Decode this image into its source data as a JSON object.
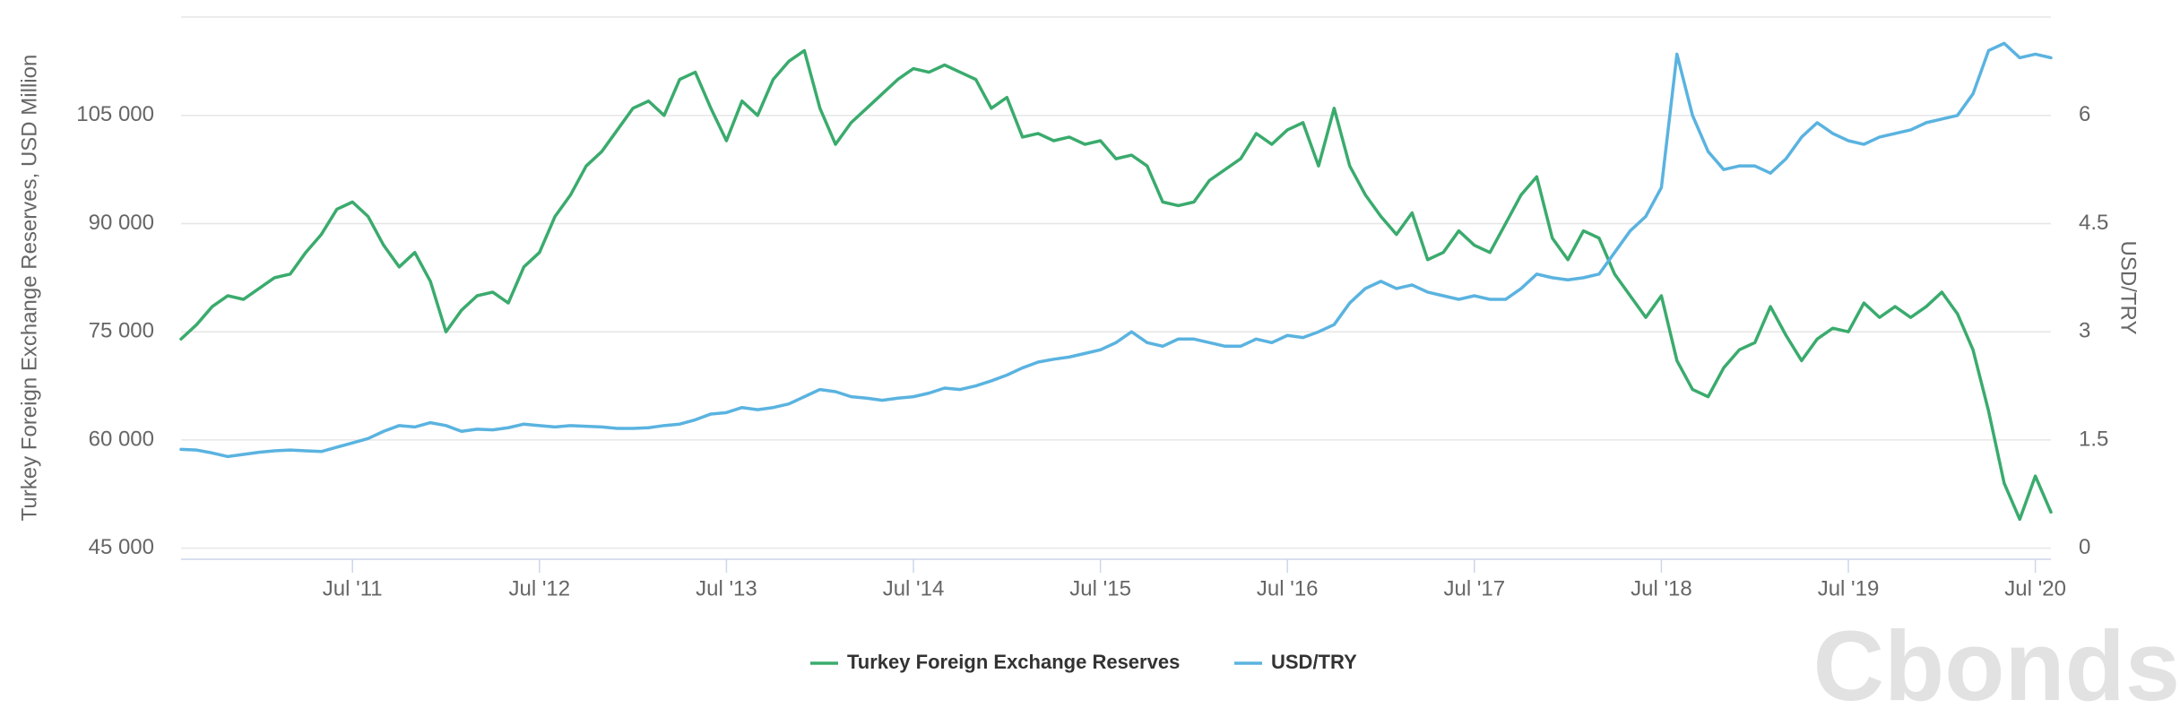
{
  "chart_data": {
    "type": "line",
    "y_label": "Turkey Foreign Exchange Reserves, USD Million",
    "y2_label": "USD/TRY",
    "watermark": "Cbonds",
    "x": [
      "2010-08",
      "2010-09",
      "2010-10",
      "2010-11",
      "2010-12",
      "2011-01",
      "2011-02",
      "2011-03",
      "2011-04",
      "2011-05",
      "2011-06",
      "2011-07",
      "2011-08",
      "2011-09",
      "2011-10",
      "2011-11",
      "2011-12",
      "2012-01",
      "2012-02",
      "2012-03",
      "2012-04",
      "2012-05",
      "2012-06",
      "2012-07",
      "2012-08",
      "2012-09",
      "2012-10",
      "2012-11",
      "2012-12",
      "2013-01",
      "2013-02",
      "2013-03",
      "2013-04",
      "2013-05",
      "2013-06",
      "2013-07",
      "2013-08",
      "2013-09",
      "2013-10",
      "2013-11",
      "2013-12",
      "2014-01",
      "2014-02",
      "2014-03",
      "2014-04",
      "2014-05",
      "2014-06",
      "2014-07",
      "2014-08",
      "2014-09",
      "2014-10",
      "2014-11",
      "2014-12",
      "2015-01",
      "2015-02",
      "2015-03",
      "2015-04",
      "2015-05",
      "2015-06",
      "2015-07",
      "2015-08",
      "2015-09",
      "2015-10",
      "2015-11",
      "2015-12",
      "2016-01",
      "2016-02",
      "2016-03",
      "2016-04",
      "2016-05",
      "2016-06",
      "2016-07",
      "2016-08",
      "2016-09",
      "2016-10",
      "2016-11",
      "2016-12",
      "2017-01",
      "2017-02",
      "2017-03",
      "2017-04",
      "2017-05",
      "2017-06",
      "2017-07",
      "2017-08",
      "2017-09",
      "2017-10",
      "2017-11",
      "2017-12",
      "2018-01",
      "2018-02",
      "2018-03",
      "2018-04",
      "2018-05",
      "2018-06",
      "2018-07",
      "2018-08",
      "2018-09",
      "2018-10",
      "2018-11",
      "2018-12",
      "2019-01",
      "2019-02",
      "2019-03",
      "2019-04",
      "2019-05",
      "2019-06",
      "2019-07",
      "2019-08",
      "2019-09",
      "2019-10",
      "2019-11",
      "2019-12",
      "2020-01",
      "2020-02",
      "2020-03",
      "2020-04",
      "2020-05",
      "2020-06",
      "2020-07",
      "2020-08"
    ],
    "series": [
      {
        "name": "Turkey Foreign Exchange Reserves",
        "color": "#3aab6d",
        "values": [
          74000,
          76000,
          78500,
          80000,
          79500,
          81000,
          82500,
          83000,
          86000,
          88500,
          92000,
          93000,
          91000,
          87000,
          84000,
          86000,
          82000,
          75000,
          78000,
          80000,
          80500,
          79000,
          84000,
          86000,
          91000,
          94000,
          98000,
          100000,
          103000,
          106000,
          107000,
          105000,
          110000,
          111000,
          106000,
          101500,
          107000,
          105000,
          110000,
          112500,
          114000,
          106000,
          101000,
          104000,
          106000,
          108000,
          110000,
          111500,
          111000,
          112000,
          111000,
          110000,
          106000,
          107500,
          102000,
          102500,
          101500,
          102000,
          101000,
          101500,
          99000,
          99500,
          98000,
          93000,
          92500,
          93000,
          96000,
          97500,
          99000,
          102500,
          101000,
          103000,
          104000,
          98000,
          106000,
          98000,
          94000,
          91000,
          88500,
          91500,
          85000,
          86000,
          89000,
          87000,
          86000,
          90000,
          94000,
          96500,
          88000,
          85000,
          89000,
          88000,
          83000,
          80000,
          77000,
          80000,
          71000,
          67000,
          66000,
          70000,
          72500,
          73500,
          78500,
          74500,
          71000,
          74000,
          75500,
          75000,
          79000,
          77000,
          78500,
          77000,
          78500,
          80500,
          77500,
          72500,
          64000,
          54000,
          49000,
          55000,
          50000
        ]
      },
      {
        "name": "USD/TRY",
        "color": "#5ab3e0",
        "axis": "y2",
        "values": [
          1.37,
          1.36,
          1.32,
          1.27,
          1.3,
          1.33,
          1.35,
          1.36,
          1.35,
          1.34,
          1.4,
          1.46,
          1.52,
          1.62,
          1.7,
          1.68,
          1.74,
          1.7,
          1.62,
          1.65,
          1.64,
          1.67,
          1.72,
          1.7,
          1.68,
          1.7,
          1.69,
          1.68,
          1.66,
          1.66,
          1.67,
          1.7,
          1.72,
          1.78,
          1.86,
          1.88,
          1.95,
          1.92,
          1.95,
          2.0,
          2.1,
          2.2,
          2.17,
          2.1,
          2.08,
          2.05,
          2.08,
          2.1,
          2.15,
          2.22,
          2.2,
          2.25,
          2.32,
          2.4,
          2.5,
          2.58,
          2.62,
          2.65,
          2.7,
          2.75,
          2.85,
          3.0,
          2.85,
          2.8,
          2.9,
          2.9,
          2.85,
          2.8,
          2.8,
          2.9,
          2.85,
          2.95,
          2.92,
          3.0,
          3.1,
          3.4,
          3.6,
          3.7,
          3.6,
          3.65,
          3.55,
          3.5,
          3.45,
          3.5,
          3.45,
          3.45,
          3.6,
          3.8,
          3.75,
          3.72,
          3.75,
          3.8,
          4.1,
          4.4,
          4.6,
          5.0,
          6.85,
          6.0,
          5.5,
          5.25,
          5.3,
          5.3,
          5.2,
          5.4,
          5.7,
          5.9,
          5.75,
          5.65,
          5.6,
          5.7,
          5.75,
          5.8,
          5.9,
          5.95,
          6.0,
          6.3,
          6.9,
          7.0,
          6.8,
          6.85,
          6.8
        ]
      }
    ],
    "xlim": [
      "2010-08",
      "2020-08"
    ],
    "xticks": [
      {
        "value": "2011-07",
        "label": "Jul '11"
      },
      {
        "value": "2012-07",
        "label": "Jul '12"
      },
      {
        "value": "2013-07",
        "label": "Jul '13"
      },
      {
        "value": "2014-07",
        "label": "Jul '14"
      },
      {
        "value": "2015-07",
        "label": "Jul '15"
      },
      {
        "value": "2016-07",
        "label": "Jul '16"
      },
      {
        "value": "2017-07",
        "label": "Jul '17"
      },
      {
        "value": "2018-07",
        "label": "Jul '18"
      },
      {
        "value": "2019-07",
        "label": "Jul '19"
      },
      {
        "value": "2020-07",
        "label": "Jul '20"
      }
    ],
    "ylim": [
      43460,
      118650
    ],
    "yticks": [
      {
        "value": 45000,
        "label": "45 000"
      },
      {
        "value": 60000,
        "label": "60 000"
      },
      {
        "value": 75000,
        "label": "75 000"
      },
      {
        "value": 90000,
        "label": "90 000"
      },
      {
        "value": 105000,
        "label": "105 000"
      }
    ],
    "y2lim": [
      -0.154,
      7.365
    ],
    "y2ticks": [
      0,
      1.5,
      3,
      4.5,
      6
    ],
    "grid": true,
    "legend": "bottom"
  }
}
